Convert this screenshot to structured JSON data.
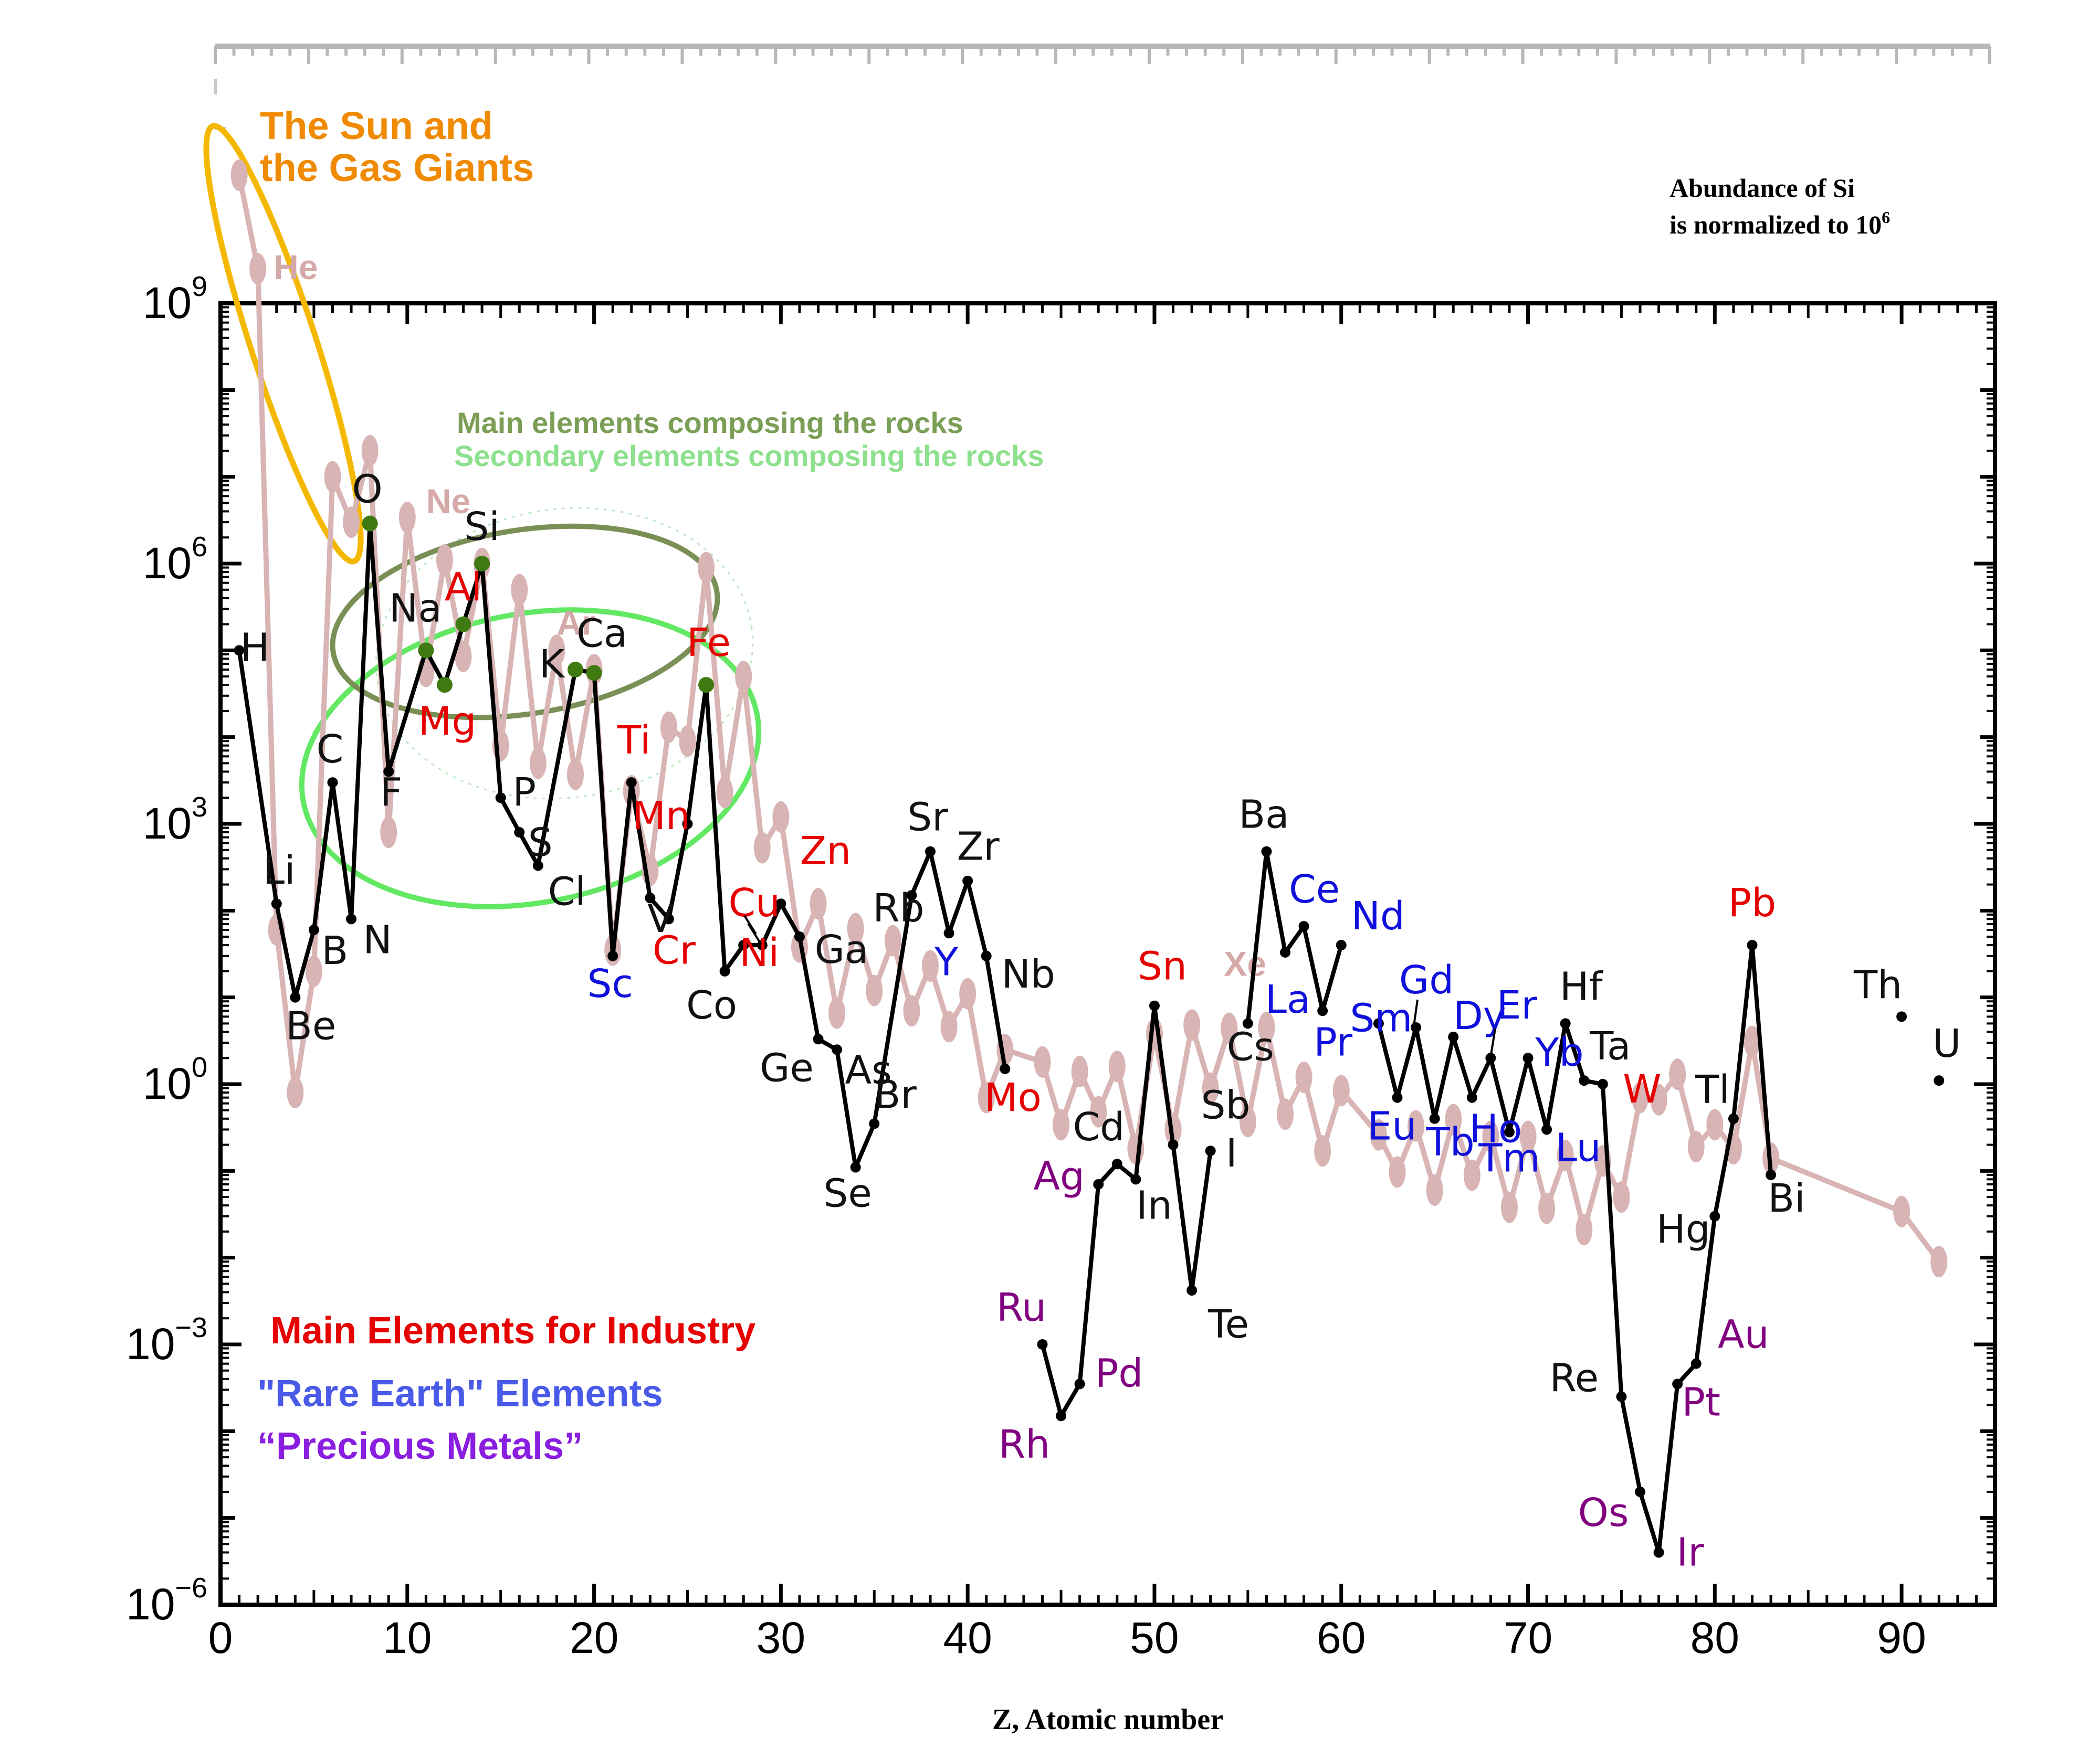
{
  "colors": {
    "earth_line": "#000000",
    "solar_line": "#d8b4b4",
    "industry": "#e60000",
    "rare_earth": "#1010dd",
    "precious": "#800080",
    "other": "#111111",
    "rock_main": "#5c9a3a",
    "sun_gas": "#f08a00",
    "sun_ellipse": "#f5b800",
    "rock_main_ellipse": "#7a8f55",
    "rock_secondary": "#62e862",
    "solar_label": "#d6a9a9",
    "rock_dot": "#3f7a10"
  },
  "annotations": {
    "sun_title_1": "The Sun and",
    "sun_title_2": "the Gas Giants",
    "normalized_1": "Abundance of Si",
    "normalized_2": "is normalized to 10",
    "normalized_exp": "6",
    "rocks_main": "Main elements composing the rocks",
    "rocks_secondary": "Secondary elements composing the rocks"
  },
  "legend": {
    "industry": "Main Elements for Industry",
    "rare_earth": "\"Rare Earth\" Elements",
    "precious": "“Precious Metals”"
  },
  "chart_data": {
    "type": "line",
    "xlabel": "Z, Atomic number",
    "y_scale": "log",
    "xlim": [
      0,
      95
    ],
    "ylim": [
      1e-06,
      1000000000.0
    ],
    "x_ticks": [
      "0",
      "10",
      "20",
      "30",
      "40",
      "50",
      "60",
      "70",
      "80",
      "90"
    ],
    "y_ticks": [
      {
        "base": "10",
        "exp": "9"
      },
      {
        "base": "10",
        "exp": "6"
      },
      {
        "base": "10",
        "exp": "3"
      },
      {
        "base": "10",
        "exp": "0"
      },
      {
        "base": "10",
        "exp": "−3"
      },
      {
        "base": "10",
        "exp": "−6"
      }
    ],
    "solar_system": {
      "labels": [
        "He",
        "Ne",
        "Ar",
        "Xe"
      ],
      "points": [
        [
          1,
          30000000000.0
        ],
        [
          2,
          2500000000.0
        ],
        [
          3,
          60
        ],
        [
          4,
          0.8
        ],
        [
          5,
          20
        ],
        [
          6,
          10000000.0
        ],
        [
          7,
          3000000.0
        ],
        [
          8,
          20000000.0
        ],
        [
          9,
          800
        ],
        [
          10,
          3400000.0
        ],
        [
          11,
          57000.0
        ],
        [
          12,
          1100000.0
        ],
        [
          13,
          85000.0
        ],
        [
          14,
          1000000.0
        ],
        [
          15,
          8000
        ],
        [
          16,
          500000.0
        ],
        [
          17,
          5000
        ],
        [
          18,
          100000.0
        ],
        [
          19,
          3700
        ],
        [
          20,
          60000.0
        ],
        [
          21,
          35
        ],
        [
          22,
          2400
        ],
        [
          23,
          290
        ],
        [
          24,
          13000.0
        ],
        [
          25,
          9000
        ],
        [
          26,
          900000.0
        ],
        [
          27,
          2300
        ],
        [
          28,
          50000.0
        ],
        [
          29,
          530
        ],
        [
          30,
          1200
        ],
        [
          31,
          38
        ],
        [
          32,
          120
        ],
        [
          33,
          6.6
        ],
        [
          34,
          62
        ],
        [
          35,
          12
        ],
        [
          36,
          45
        ],
        [
          37,
          7
        ],
        [
          38,
          23
        ],
        [
          39,
          4.6
        ],
        [
          40,
          11
        ],
        [
          41,
          0.7
        ],
        [
          42,
          2.5
        ],
        [
          44,
          1.8
        ],
        [
          45,
          0.34
        ],
        [
          46,
          1.4
        ],
        [
          47,
          0.48
        ],
        [
          48,
          1.6
        ],
        [
          49,
          0.18
        ],
        [
          50,
          3.8
        ],
        [
          51,
          0.3
        ],
        [
          52,
          4.8
        ],
        [
          53,
          0.9
        ],
        [
          54,
          4.4
        ],
        [
          55,
          0.37
        ],
        [
          56,
          4.5
        ],
        [
          57,
          0.45
        ],
        [
          58,
          1.2
        ],
        [
          59,
          0.17
        ],
        [
          60,
          0.84
        ],
        [
          62,
          0.26
        ],
        [
          63,
          0.097
        ],
        [
          64,
          0.33
        ],
        [
          65,
          0.06
        ],
        [
          66,
          0.39
        ],
        [
          67,
          0.089
        ],
        [
          68,
          0.25
        ],
        [
          69,
          0.038
        ],
        [
          70,
          0.25
        ],
        [
          71,
          0.037
        ],
        [
          72,
          0.15
        ],
        [
          73,
          0.021
        ],
        [
          74,
          0.13
        ],
        [
          75,
          0.05
        ],
        [
          76,
          0.7
        ],
        [
          77,
          0.66
        ],
        [
          78,
          1.3
        ],
        [
          79,
          0.19
        ],
        [
          80,
          0.34
        ],
        [
          81,
          0.18
        ],
        [
          82,
          3.1
        ],
        [
          83,
          0.14
        ],
        [
          90,
          0.034
        ],
        [
          92,
          0.009
        ]
      ]
    },
    "earth_crust": {
      "segments": [
        [
          1,
          2,
          3,
          4,
          5,
          6,
          7,
          8,
          9,
          10,
          11,
          12,
          13,
          14,
          15,
          16,
          17,
          18,
          19,
          20,
          21,
          22,
          23,
          24,
          25,
          26,
          27,
          28,
          29,
          30,
          31,
          32,
          33,
          34,
          35,
          36,
          37,
          38,
          39,
          40,
          41,
          42
        ],
        [
          44,
          45,
          46,
          47,
          48,
          49,
          50,
          51,
          52,
          53
        ],
        [
          55,
          56,
          57,
          58,
          59,
          60
        ],
        [
          62,
          63,
          64,
          65,
          66,
          67,
          68,
          69,
          70,
          71,
          72,
          73,
          74,
          75,
          76,
          77,
          78,
          79,
          80,
          81,
          82,
          83
        ]
      ],
      "points": [
        {
          "z": 1,
          "sym": "H",
          "y": 100000.0,
          "cat": "other",
          "rock": false
        },
        {
          "z": 3,
          "sym": "Li",
          "y": 120,
          "cat": "other",
          "rock": false
        },
        {
          "z": 4,
          "sym": "Be",
          "y": 10,
          "cat": "other",
          "rock": false
        },
        {
          "z": 5,
          "sym": "B",
          "y": 60,
          "cat": "other",
          "rock": false
        },
        {
          "z": 6,
          "sym": "C",
          "y": 3000,
          "cat": "other",
          "rock": false
        },
        {
          "z": 7,
          "sym": "N",
          "y": 80,
          "cat": "other",
          "rock": false
        },
        {
          "z": 8,
          "sym": "O",
          "y": 2900000.0,
          "cat": "other",
          "rock": true
        },
        {
          "z": 9,
          "sym": "F",
          "y": 4000,
          "cat": "other",
          "rock": false
        },
        {
          "z": 11,
          "sym": "Na",
          "y": 100000.0,
          "cat": "other",
          "rock": true
        },
        {
          "z": 12,
          "sym": "Mg",
          "y": 40000.0,
          "cat": "industry",
          "rock": true
        },
        {
          "z": 13,
          "sym": "Al",
          "y": 200000.0,
          "cat": "industry",
          "rock": true
        },
        {
          "z": 14,
          "sym": "Si",
          "y": 1000000.0,
          "cat": "other",
          "rock": true
        },
        {
          "z": 15,
          "sym": "P",
          "y": 2000,
          "cat": "other",
          "rock": false
        },
        {
          "z": 16,
          "sym": "S",
          "y": 800,
          "cat": "other",
          "rock": false
        },
        {
          "z": 17,
          "sym": "Cl",
          "y": 330,
          "cat": "other",
          "rock": false
        },
        {
          "z": 19,
          "sym": "K",
          "y": 60000.0,
          "cat": "other",
          "rock": true
        },
        {
          "z": 20,
          "sym": "Ca",
          "y": 55000.0,
          "cat": "other",
          "rock": true
        },
        {
          "z": 21,
          "sym": "Sc",
          "y": 30,
          "cat": "rare_earth",
          "rock": false
        },
        {
          "z": 22,
          "sym": "Ti",
          "y": 3000,
          "cat": "industry",
          "rock": false
        },
        {
          "z": 23,
          "sym": "V",
          "y": 140,
          "cat": "other",
          "rock": false
        },
        {
          "z": 24,
          "sym": "Cr",
          "y": 80,
          "cat": "industry",
          "rock": false
        },
        {
          "z": 25,
          "sym": "Mn",
          "y": 1000,
          "cat": "industry",
          "rock": false
        },
        {
          "z": 26,
          "sym": "Fe",
          "y": 40000.0,
          "cat": "industry",
          "rock": true
        },
        {
          "z": 27,
          "sym": "Co",
          "y": 20,
          "cat": "other",
          "rock": false
        },
        {
          "z": 28,
          "sym": "Ni",
          "y": 40,
          "cat": "industry",
          "rock": false
        },
        {
          "z": 29,
          "sym": "Cu",
          "y": 40,
          "cat": "industry",
          "rock": false
        },
        {
          "z": 30,
          "sym": "Zn",
          "y": 120,
          "cat": "industry",
          "rock": false
        },
        {
          "z": 31,
          "sym": "Ga",
          "y": 50,
          "cat": "other",
          "rock": false
        },
        {
          "z": 32,
          "sym": "Ge",
          "y": 3.3,
          "cat": "other",
          "rock": false
        },
        {
          "z": 33,
          "sym": "As",
          "y": 2.5,
          "cat": "other",
          "rock": false
        },
        {
          "z": 34,
          "sym": "Se",
          "y": 0.11,
          "cat": "other",
          "rock": false
        },
        {
          "z": 35,
          "sym": "Br",
          "y": 0.35,
          "cat": "other",
          "rock": false
        },
        {
          "z": 37,
          "sym": "Rb",
          "y": 150,
          "cat": "other",
          "rock": false
        },
        {
          "z": 38,
          "sym": "Sr",
          "y": 480,
          "cat": "other",
          "rock": false
        },
        {
          "z": 39,
          "sym": "Y",
          "y": 55,
          "cat": "rare_earth",
          "rock": false
        },
        {
          "z": 40,
          "sym": "Zr",
          "y": 220,
          "cat": "other",
          "rock": false
        },
        {
          "z": 41,
          "sym": "Nb",
          "y": 30,
          "cat": "other",
          "rock": false
        },
        {
          "z": 42,
          "sym": "Mo",
          "y": 1.5,
          "cat": "industry",
          "rock": false
        },
        {
          "z": 44,
          "sym": "Ru",
          "y": 0.001,
          "cat": "precious",
          "rock": false
        },
        {
          "z": 45,
          "sym": "Rh",
          "y": 0.00015,
          "cat": "precious",
          "rock": false
        },
        {
          "z": 46,
          "sym": "Pd",
          "y": 0.00035,
          "cat": "precious",
          "rock": false
        },
        {
          "z": 47,
          "sym": "Ag",
          "y": 0.07,
          "cat": "precious",
          "rock": false
        },
        {
          "z": 48,
          "sym": "Cd",
          "y": 0.12,
          "cat": "other",
          "rock": false
        },
        {
          "z": 49,
          "sym": "In",
          "y": 0.08,
          "cat": "other",
          "rock": false
        },
        {
          "z": 50,
          "sym": "Sn",
          "y": 8,
          "cat": "industry",
          "rock": false
        },
        {
          "z": 51,
          "sym": "Sb",
          "y": 0.2,
          "cat": "other",
          "rock": false
        },
        {
          "z": 52,
          "sym": "Te",
          "y": 0.0042,
          "cat": "other",
          "rock": false
        },
        {
          "z": 53,
          "sym": "I",
          "y": 0.17,
          "cat": "other",
          "rock": false
        },
        {
          "z": 54,
          "sym": "Xe",
          "y": null,
          "cat": "solar",
          "rock": false
        },
        {
          "z": 55,
          "sym": "Cs",
          "y": 5,
          "cat": "other",
          "rock": false
        },
        {
          "z": 56,
          "sym": "Ba",
          "y": 480,
          "cat": "other",
          "rock": false
        },
        {
          "z": 57,
          "sym": "La",
          "y": 33,
          "cat": "rare_earth",
          "rock": false
        },
        {
          "z": 58,
          "sym": "Ce",
          "y": 66,
          "cat": "rare_earth",
          "rock": false
        },
        {
          "z": 59,
          "sym": "Pr",
          "y": 7,
          "cat": "rare_earth",
          "rock": false
        },
        {
          "z": 60,
          "sym": "Nd",
          "y": 40,
          "cat": "rare_earth",
          "rock": false
        },
        {
          "z": 62,
          "sym": "Sm",
          "y": 5,
          "cat": "rare_earth",
          "rock": false
        },
        {
          "z": 63,
          "sym": "Eu",
          "y": 0.7,
          "cat": "rare_earth",
          "rock": false
        },
        {
          "z": 64,
          "sym": "Gd",
          "y": 4.5,
          "cat": "rare_earth",
          "rock": false
        },
        {
          "z": 65,
          "sym": "Tb",
          "y": 0.4,
          "cat": "rare_earth",
          "rock": false
        },
        {
          "z": 66,
          "sym": "Dy",
          "y": 3.5,
          "cat": "rare_earth",
          "rock": false
        },
        {
          "z": 67,
          "sym": "Ho",
          "y": 0.7,
          "cat": "rare_earth",
          "rock": false
        },
        {
          "z": 68,
          "sym": "Er",
          "y": 2,
          "cat": "rare_earth",
          "rock": false
        },
        {
          "z": 69,
          "sym": "Tm",
          "y": 0.28,
          "cat": "rare_earth",
          "rock": false
        },
        {
          "z": 70,
          "sym": "Yb",
          "y": 2,
          "cat": "rare_earth",
          "rock": false
        },
        {
          "z": 71,
          "sym": "Lu",
          "y": 0.3,
          "cat": "rare_earth",
          "rock": false
        },
        {
          "z": 72,
          "sym": "Hf",
          "y": 5,
          "cat": "other",
          "rock": false
        },
        {
          "z": 73,
          "sym": "Ta",
          "y": 1.1,
          "cat": "other",
          "rock": false
        },
        {
          "z": 74,
          "sym": "W",
          "y": 1,
          "cat": "industry",
          "rock": false
        },
        {
          "z": 75,
          "sym": "Re",
          "y": 0.00025,
          "cat": "other",
          "rock": false
        },
        {
          "z": 76,
          "sym": "Os",
          "y": 2e-05,
          "cat": "precious",
          "rock": false
        },
        {
          "z": 77,
          "sym": "Ir",
          "y": 4e-06,
          "cat": "precious",
          "rock": false
        },
        {
          "z": 78,
          "sym": "Pt",
          "y": 0.00035,
          "cat": "precious",
          "rock": false
        },
        {
          "z": 79,
          "sym": "Au",
          "y": 0.0006,
          "cat": "precious",
          "rock": false
        },
        {
          "z": 80,
          "sym": "Hg",
          "y": 0.03,
          "cat": "other",
          "rock": false
        },
        {
          "z": 81,
          "sym": "Tl",
          "y": 0.4,
          "cat": "other",
          "rock": false
        },
        {
          "z": 82,
          "sym": "Pb",
          "y": 40,
          "cat": "industry",
          "rock": false
        },
        {
          "z": 83,
          "sym": "Bi",
          "y": 0.09,
          "cat": "other",
          "rock": false
        },
        {
          "z": 90,
          "sym": "Th",
          "y": 6,
          "cat": "other",
          "rock": false
        },
        {
          "z": 92,
          "sym": "U",
          "y": 1.1,
          "cat": "other",
          "rock": false
        }
      ]
    }
  }
}
